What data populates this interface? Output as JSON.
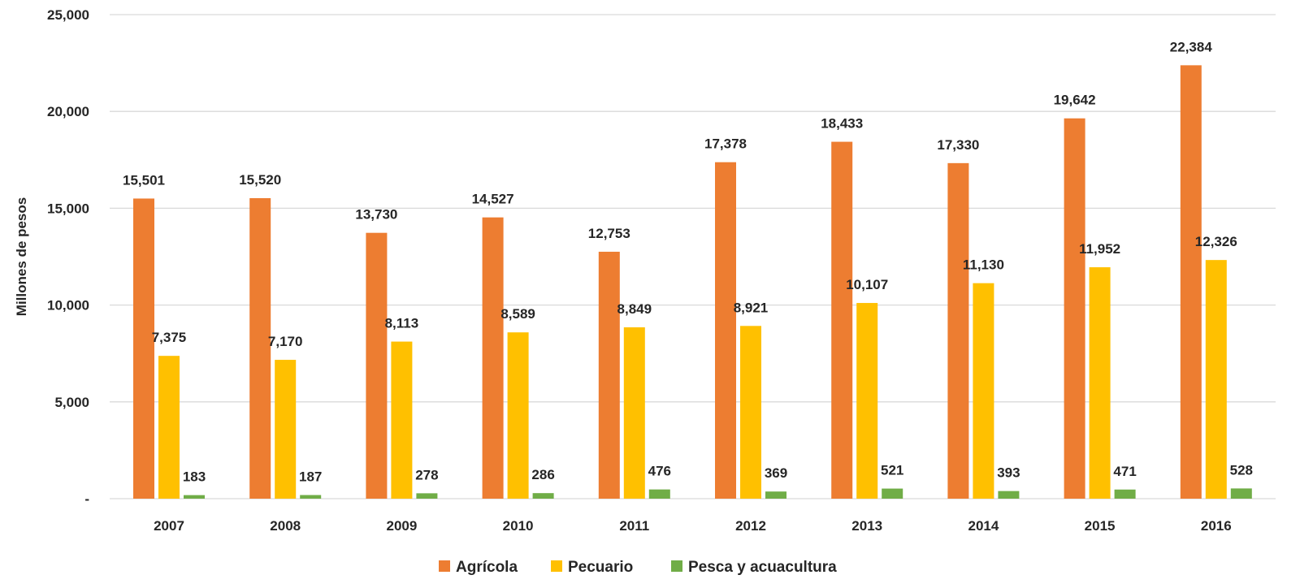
{
  "chart_data": {
    "type": "bar",
    "ylabel": "Millones de pesos",
    "ylim": [
      0,
      25000
    ],
    "yticks": [
      0,
      5000,
      10000,
      15000,
      20000,
      25000
    ],
    "ytick_labels": [
      "-",
      "5,000",
      "10,000",
      "15,000",
      "20,000",
      "25,000"
    ],
    "grid": true,
    "legend_position": "bottom",
    "categories": [
      "2007",
      "2008",
      "2009",
      "2010",
      "2011",
      "2012",
      "2013",
      "2014",
      "2015",
      "2016"
    ],
    "series": [
      {
        "name": "Agrícola",
        "color": "#ED7D31",
        "values": [
          15501,
          15520,
          13730,
          14527,
          12753,
          17378,
          18433,
          17330,
          19642,
          22384
        ],
        "labels": [
          "15,501",
          "15,520",
          "13,730",
          "14,527",
          "12,753",
          "17,378",
          "18,433",
          "17,330",
          "19,642",
          "22,384"
        ]
      },
      {
        "name": "Pecuario",
        "color": "#FFC000",
        "values": [
          7375,
          7170,
          8113,
          8589,
          8849,
          8921,
          10107,
          11130,
          11952,
          12326
        ],
        "labels": [
          "7,375",
          "7,170",
          "8,113",
          "8,589",
          "8,849",
          "8,921",
          "10,107",
          "11,130",
          "11,952",
          "12,326"
        ]
      },
      {
        "name": "Pesca y acuacultura",
        "color": "#70AD47",
        "values": [
          183,
          187,
          278,
          286,
          476,
          369,
          521,
          393,
          471,
          528
        ],
        "labels": [
          "183",
          "187",
          "278",
          "286",
          "476",
          "369",
          "521",
          "393",
          "471",
          "528"
        ]
      }
    ],
    "colors": {
      "gridline": "#D9D9D9",
      "text": "#262626"
    }
  }
}
